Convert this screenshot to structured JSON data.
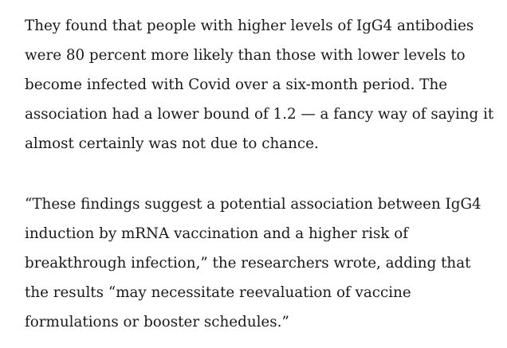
{
  "article": {
    "paragraphs": [
      {
        "lines": [
          "They found that people with higher levels of IgG4 antibodies",
          "were 80 percent more likely than those with lower levels to",
          "become infected with Covid over a six-month period. The",
          "association had a lower bound of 1.2 — a fancy way of saying it",
          "almost certainly was not due to chance."
        ]
      },
      {
        "lines": [
          "“These findings suggest a potential association between IgG4",
          "induction by mRNA vaccination and a higher risk of",
          "breakthrough infection,” the researchers wrote, adding that",
          "the results “may necessitate reevaluation of vaccine",
          "formulations or booster schedules.”"
        ]
      }
    ]
  }
}
